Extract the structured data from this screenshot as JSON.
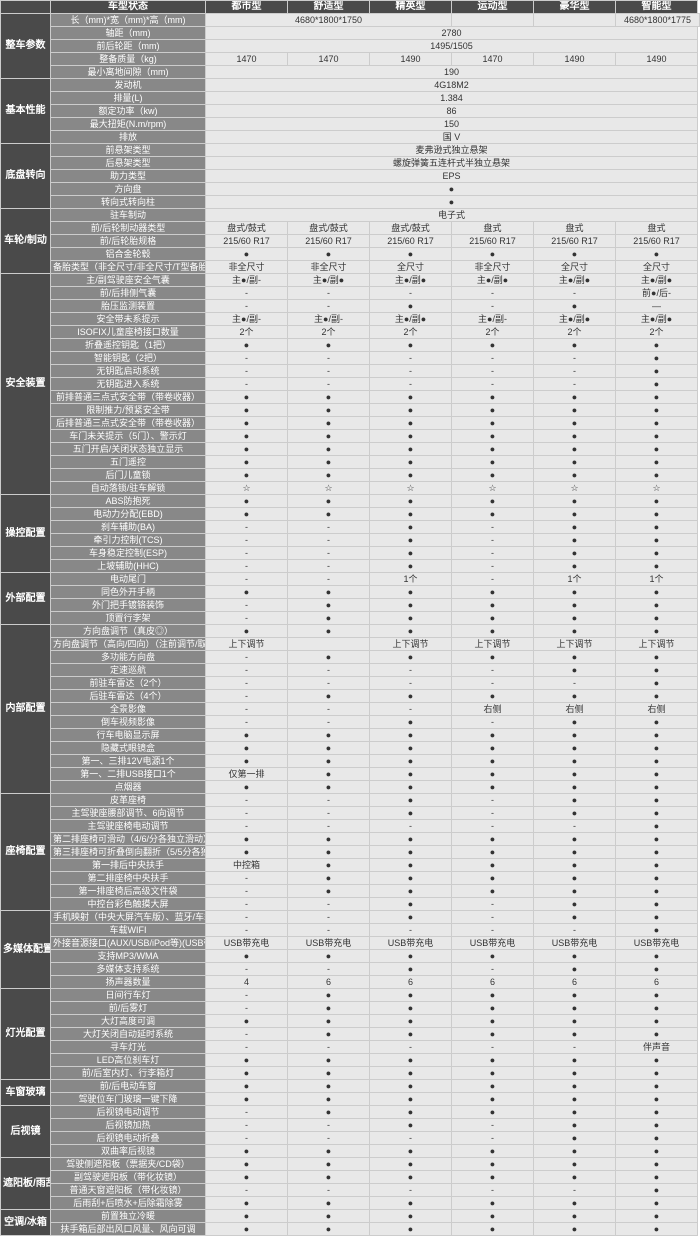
{
  "columns": [
    "车型状态",
    "都市型",
    "舒适型",
    "精英型",
    "运动型",
    "豪华型",
    "智能型"
  ],
  "sections": [
    {
      "name": "整车参数",
      "rows": [
        {
          "l": "长（mm)*宽（mm)*高（mm)",
          "v": [
            "4680*1800*1750",
            "",
            "",
            "4680*1800*1775",
            "",
            ""
          ],
          "sp": [
            3,
            0,
            0,
            3,
            0,
            0
          ]
        },
        {
          "l": "轴距（mm)",
          "v": [
            "2780"
          ],
          "sp": [
            6
          ]
        },
        {
          "l": "前后轮距（mm)",
          "v": [
            "1495/1505"
          ],
          "sp": [
            6
          ]
        },
        {
          "l": "整备质量（kg)",
          "v": [
            "1470",
            "1470",
            "1490",
            "1470",
            "1490",
            "1490"
          ]
        },
        {
          "l": "最小离地间隙（mm)",
          "v": [
            "190"
          ],
          "sp": [
            6
          ]
        }
      ]
    },
    {
      "name": "基本性能",
      "rows": [
        {
          "l": "发动机",
          "v": [
            "4G18M2"
          ],
          "sp": [
            6
          ]
        },
        {
          "l": "排量(L)",
          "v": [
            "1.384"
          ],
          "sp": [
            6
          ]
        },
        {
          "l": "额定功率（kw)",
          "v": [
            "86"
          ],
          "sp": [
            6
          ]
        },
        {
          "l": "最大扭矩(N.m/rpm)",
          "v": [
            "150"
          ],
          "sp": [
            6
          ]
        },
        {
          "l": "排放",
          "v": [
            "国 V"
          ],
          "sp": [
            6
          ]
        }
      ]
    },
    {
      "name": "底盘转向",
      "rows": [
        {
          "l": "前悬架类型",
          "v": [
            "麦弗逊式独立悬架"
          ],
          "sp": [
            6
          ]
        },
        {
          "l": "后悬架类型",
          "v": [
            "螺旋弹簧五连杆式半独立悬架"
          ],
          "sp": [
            6
          ]
        },
        {
          "l": "助力类型",
          "v": [
            "EPS"
          ],
          "sp": [
            6
          ]
        },
        {
          "l": "方向盘",
          "v": [
            "●"
          ],
          "sp": [
            6
          ]
        },
        {
          "l": "转向式转向柱",
          "v": [
            "●"
          ],
          "sp": [
            6
          ]
        }
      ]
    },
    {
      "name": "车轮/制动",
      "rows": [
        {
          "l": "驻车制动",
          "v": [
            "电子式"
          ],
          "sp": [
            6
          ]
        },
        {
          "l": "前/后轮制动器类型",
          "v": [
            "盘式/鼓式",
            "盘式/鼓式",
            "盘式/鼓式",
            "盘式",
            "盘式",
            "盘式"
          ]
        },
        {
          "l": "前/后轮胎规格",
          "v": [
            "215/60 R17",
            "215/60 R17",
            "215/60 R17",
            "215/60 R17",
            "215/60 R17",
            "215/60 R17"
          ]
        },
        {
          "l": "铝合金轮毂",
          "v": [
            "●",
            "●",
            "●",
            "●",
            "●",
            "●"
          ]
        },
        {
          "l": "备胎类型（非全尺寸/非全尺寸/T型备胎）",
          "v": [
            "非全尺寸",
            "非全尺寸",
            "全尺寸",
            "非全尺寸",
            "全尺寸",
            "全尺寸"
          ]
        }
      ]
    },
    {
      "name": "安全装置",
      "rows": [
        {
          "l": "主/副驾驶座安全气囊",
          "v": [
            "主●/副-",
            "主●/副●",
            "主●/副●",
            "主●/副●",
            "主●/副●",
            "主●/副●"
          ]
        },
        {
          "l": "前/后排侧气囊",
          "v": [
            "-",
            "-",
            "-",
            "-",
            "-",
            "前●/后-"
          ]
        },
        {
          "l": "胎压监测装置",
          "v": [
            "-",
            "-",
            "●",
            "-",
            "●",
            "—"
          ]
        },
        {
          "l": "安全带未系提示",
          "v": [
            "主●/副-",
            "主●/副-",
            "主●/副●",
            "主●/副-",
            "主●/副●",
            "主●/副●"
          ]
        },
        {
          "l": "ISOFIX儿童座椅接口数量",
          "v": [
            "2个",
            "2个",
            "2个",
            "2个",
            "2个",
            "2个"
          ]
        },
        {
          "l": "折叠遥控钥匙（1把）",
          "v": [
            "●",
            "●",
            "●",
            "●",
            "●",
            "●"
          ]
        },
        {
          "l": "智能钥匙（2把）",
          "v": [
            "-",
            "-",
            "-",
            "-",
            "-",
            "●"
          ]
        },
        {
          "l": "无钥匙启动系统",
          "v": [
            "-",
            "-",
            "-",
            "-",
            "-",
            "●"
          ]
        },
        {
          "l": "无钥匙进入系统",
          "v": [
            "-",
            "-",
            "-",
            "-",
            "-",
            "●"
          ]
        },
        {
          "l": "前排普通三点式安全带（带卷收器）",
          "v": [
            "●",
            "●",
            "●",
            "●",
            "●",
            "●"
          ]
        },
        {
          "l": "限制推力/预紧安全带",
          "v": [
            "●",
            "●",
            "●",
            "●",
            "●",
            "●"
          ]
        },
        {
          "l": "后排普通三点式安全带（带卷收器）",
          "v": [
            "●",
            "●",
            "●",
            "●",
            "●",
            "●"
          ]
        },
        {
          "l": "车门未关提示（5门）、警示灯",
          "v": [
            "●",
            "●",
            "●",
            "●",
            "●",
            "●"
          ]
        },
        {
          "l": "五门开启/关闭状态独立显示",
          "v": [
            "●",
            "●",
            "●",
            "●",
            "●",
            "●"
          ]
        },
        {
          "l": "五门遥控",
          "v": [
            "●",
            "●",
            "●",
            "●",
            "●",
            "●"
          ]
        },
        {
          "l": "后门儿童锁",
          "v": [
            "●",
            "●",
            "●",
            "●",
            "●",
            "●"
          ]
        },
        {
          "l": "自动落锁/驻车解锁",
          "v": [
            "☆",
            "☆",
            "☆",
            "☆",
            "☆",
            "☆"
          ]
        }
      ]
    },
    {
      "name": "操控配置",
      "rows": [
        {
          "l": "ABS防抱死",
          "v": [
            "●",
            "●",
            "●",
            "●",
            "●",
            "●"
          ]
        },
        {
          "l": "电动力分配(EBD)",
          "v": [
            "●",
            "●",
            "●",
            "●",
            "●",
            "●"
          ]
        },
        {
          "l": "刹车辅助(BA)",
          "v": [
            "-",
            "-",
            "●",
            "-",
            "●",
            "●"
          ]
        },
        {
          "l": "牵引力控制(TCS)",
          "v": [
            "-",
            "-",
            "●",
            "-",
            "●",
            "●"
          ]
        },
        {
          "l": "车身稳定控制(ESP)",
          "v": [
            "-",
            "-",
            "●",
            "-",
            "●",
            "●"
          ]
        },
        {
          "l": "上坡辅助(HHC)",
          "v": [
            "-",
            "-",
            "●",
            "-",
            "●",
            "●"
          ]
        }
      ]
    },
    {
      "name": "外部配置",
      "rows": [
        {
          "l": "电动尾门",
          "v": [
            "-",
            "-",
            "1个",
            "-",
            "1个",
            "1个"
          ]
        },
        {
          "l": "同色外开手柄",
          "v": [
            "●",
            "●",
            "●",
            "●",
            "●",
            "●"
          ]
        },
        {
          "l": "外门把手镀铬装饰",
          "v": [
            "-",
            "●",
            "●",
            "●",
            "●",
            "●"
          ]
        },
        {
          "l": "顶置行李架",
          "v": [
            "-",
            "●",
            "●",
            "●",
            "●",
            "●"
          ]
        }
      ]
    },
    {
      "name": "内部配置",
      "rows": [
        {
          "l": "方向盘调节（真皮◎）",
          "v": [
            "●",
            "●",
            "●",
            "●",
            "●",
            "●"
          ]
        },
        {
          "l": "方向盘调节（高向/四向）（注前调节/取消）",
          "v": [
            "上下调节",
            "",
            "上下调节",
            "上下调节",
            "上下调节",
            "上下调节"
          ]
        },
        {
          "l": "多功能方向盘",
          "v": [
            "-",
            "●",
            "●",
            "●",
            "●",
            "●"
          ]
        },
        {
          "l": "定速巡航",
          "v": [
            "-",
            "-",
            "-",
            "-",
            "●",
            "●"
          ]
        },
        {
          "l": "前驻车雷达（2个）",
          "v": [
            "-",
            "-",
            "-",
            "-",
            "-",
            "●"
          ]
        },
        {
          "l": "后驻车雷达（4个）",
          "v": [
            "-",
            "●",
            "●",
            "●",
            "●",
            "●"
          ]
        },
        {
          "l": "全景影像",
          "v": [
            "-",
            "-",
            "-",
            "右侧",
            "右侧",
            "右侧"
          ]
        },
        {
          "l": "倒车视频影像",
          "v": [
            "-",
            "-",
            "●",
            "-",
            "●",
            "●"
          ]
        },
        {
          "l": "行车电脑显示屏",
          "v": [
            "●",
            "●",
            "●",
            "●",
            "●",
            "●"
          ]
        },
        {
          "l": "隐藏式眼镜盒",
          "v": [
            "●",
            "●",
            "●",
            "●",
            "●",
            "●"
          ]
        },
        {
          "l": "第一、三排12V电源1个",
          "v": [
            "●",
            "●",
            "●",
            "●",
            "●",
            "●"
          ]
        },
        {
          "l": "第一、二排USB接口1个",
          "v": [
            "仅第一排",
            "●",
            "●",
            "●",
            "●",
            "●"
          ]
        },
        {
          "l": "点烟器",
          "v": [
            "●",
            "●",
            "●",
            "●",
            "●",
            "●"
          ]
        }
      ]
    },
    {
      "name": "座椅配置",
      "rows": [
        {
          "l": "皮革座椅",
          "v": [
            "-",
            "-",
            "●",
            "-",
            "●",
            "●"
          ]
        },
        {
          "l": "主驾驶座腰部调节、6向调节",
          "v": [
            "-",
            "-",
            "●",
            "-",
            "●",
            "●"
          ]
        },
        {
          "l": "主驾驶座椅电动调节",
          "v": [
            "-",
            "-",
            "-",
            "-",
            "-",
            "●"
          ]
        },
        {
          "l": "第二排座椅可滑动（4/6/分各独立滑动）",
          "v": [
            "●",
            "●",
            "●",
            "●",
            "●",
            "●"
          ]
        },
        {
          "l": "第三排座椅可折叠倒向翻折（5/5分各独立翻折）",
          "v": [
            "●",
            "●",
            "●",
            "●",
            "●",
            "●"
          ]
        },
        {
          "l": "第一排后中央扶手",
          "v": [
            "中控箱",
            "●",
            "●",
            "●",
            "●",
            "●"
          ]
        },
        {
          "l": "第二排座椅中央扶手",
          "v": [
            "-",
            "●",
            "●",
            "●",
            "●",
            "●"
          ]
        },
        {
          "l": "第一排座椅后高级文件袋",
          "v": [
            "-",
            "●",
            "●",
            "●",
            "●",
            "●"
          ]
        },
        {
          "l": "中控台彩色触摸大屏",
          "v": [
            "-",
            "-",
            "●",
            "-",
            "●",
            "●"
          ]
        }
      ]
    },
    {
      "name": "多媒体配置",
      "rows": [
        {
          "l": "手机映射（中央大屏汽车版）、蓝牙/车载电话",
          "v": [
            "-",
            "-",
            "●",
            "-",
            "●",
            "●"
          ]
        },
        {
          "l": "车载WIFI",
          "v": [
            "-",
            "-",
            "-",
            "-",
            "-",
            "●"
          ]
        },
        {
          "l": "外接音源接口(AUX/USB/iPod等)(USB带手机充电)",
          "v": [
            "USB带充电",
            "USB带充电",
            "USB带充电",
            "USB带充电",
            "USB带充电",
            "USB带充电"
          ]
        },
        {
          "l": "支持MP3/WMA",
          "v": [
            "●",
            "●",
            "●",
            "●",
            "●",
            "●"
          ]
        },
        {
          "l": "多媒体支持系统",
          "v": [
            "-",
            "-",
            "●",
            "-",
            "●",
            "●"
          ]
        },
        {
          "l": "扬声器数量",
          "v": [
            "4",
            "6",
            "6",
            "6",
            "6",
            "6"
          ]
        }
      ]
    },
    {
      "name": "灯光配置",
      "rows": [
        {
          "l": "日间行车灯",
          "v": [
            "-",
            "●",
            "●",
            "●",
            "●",
            "●"
          ]
        },
        {
          "l": "前/后雾灯",
          "v": [
            "-",
            "●",
            "●",
            "●",
            "●",
            "●"
          ]
        },
        {
          "l": "大灯高度可调",
          "v": [
            "●",
            "●",
            "●",
            "●",
            "●",
            "●"
          ]
        },
        {
          "l": "大灯关闭自动延时系统",
          "v": [
            "-",
            "●",
            "●",
            "●",
            "●",
            "●"
          ]
        },
        {
          "l": "寻车灯光",
          "v": [
            "-",
            "-",
            "-",
            "-",
            "-",
            "伴声音"
          ]
        },
        {
          "l": "LED高位刹车灯",
          "v": [
            "●",
            "●",
            "●",
            "●",
            "●",
            "●"
          ]
        },
        {
          "l": "前/后室内灯、行李箱灯",
          "v": [
            "●",
            "●",
            "●",
            "●",
            "●",
            "●"
          ]
        }
      ]
    },
    {
      "name": "车窗玻璃",
      "rows": [
        {
          "l": "前/后电动车窗",
          "v": [
            "●",
            "●",
            "●",
            "●",
            "●",
            "●"
          ]
        },
        {
          "l": "驾驶位车门玻璃一键下降",
          "v": [
            "●",
            "●",
            "●",
            "●",
            "●",
            "●"
          ]
        }
      ]
    },
    {
      "name": "后视镜",
      "rows": [
        {
          "l": "后视镜电动调节",
          "v": [
            "-",
            "●",
            "●",
            "●",
            "●",
            "●"
          ]
        },
        {
          "l": "后视镜加热",
          "v": [
            "-",
            "-",
            "●",
            "-",
            "●",
            "●"
          ]
        },
        {
          "l": "后视镜电动折叠",
          "v": [
            "-",
            "-",
            "-",
            "-",
            "●",
            "●"
          ]
        },
        {
          "l": "双曲率后视镜",
          "v": [
            "●",
            "●",
            "●",
            "●",
            "●",
            "●"
          ]
        }
      ]
    },
    {
      "name": "遮阳板/雨刮",
      "rows": [
        {
          "l": "驾驶侧遮阳板（票据夹/CD袋）",
          "v": [
            "●",
            "●",
            "●",
            "●",
            "●",
            "●"
          ]
        },
        {
          "l": "副驾驶遮阳板（带化妆镜）",
          "v": [
            "●",
            "●",
            "●",
            "●",
            "●",
            "●"
          ]
        },
        {
          "l": "普通天窗遮阳板（带化妆镜）",
          "v": [
            "-",
            "-",
            "-",
            "-",
            "-",
            "●"
          ]
        },
        {
          "l": "后雨刮+后喷水+后除霜除雾",
          "v": [
            "●",
            "●",
            "●",
            "●",
            "●",
            "●"
          ]
        }
      ]
    },
    {
      "name": "空调/冰箱",
      "rows": [
        {
          "l": "前置独立冷暖",
          "v": [
            "●",
            "●",
            "●",
            "●",
            "●",
            "●"
          ]
        },
        {
          "l": "扶手箱后部出风口风量、风向可调",
          "v": [
            "●",
            "●",
            "●",
            "●",
            "●",
            "●"
          ]
        }
      ]
    }
  ]
}
